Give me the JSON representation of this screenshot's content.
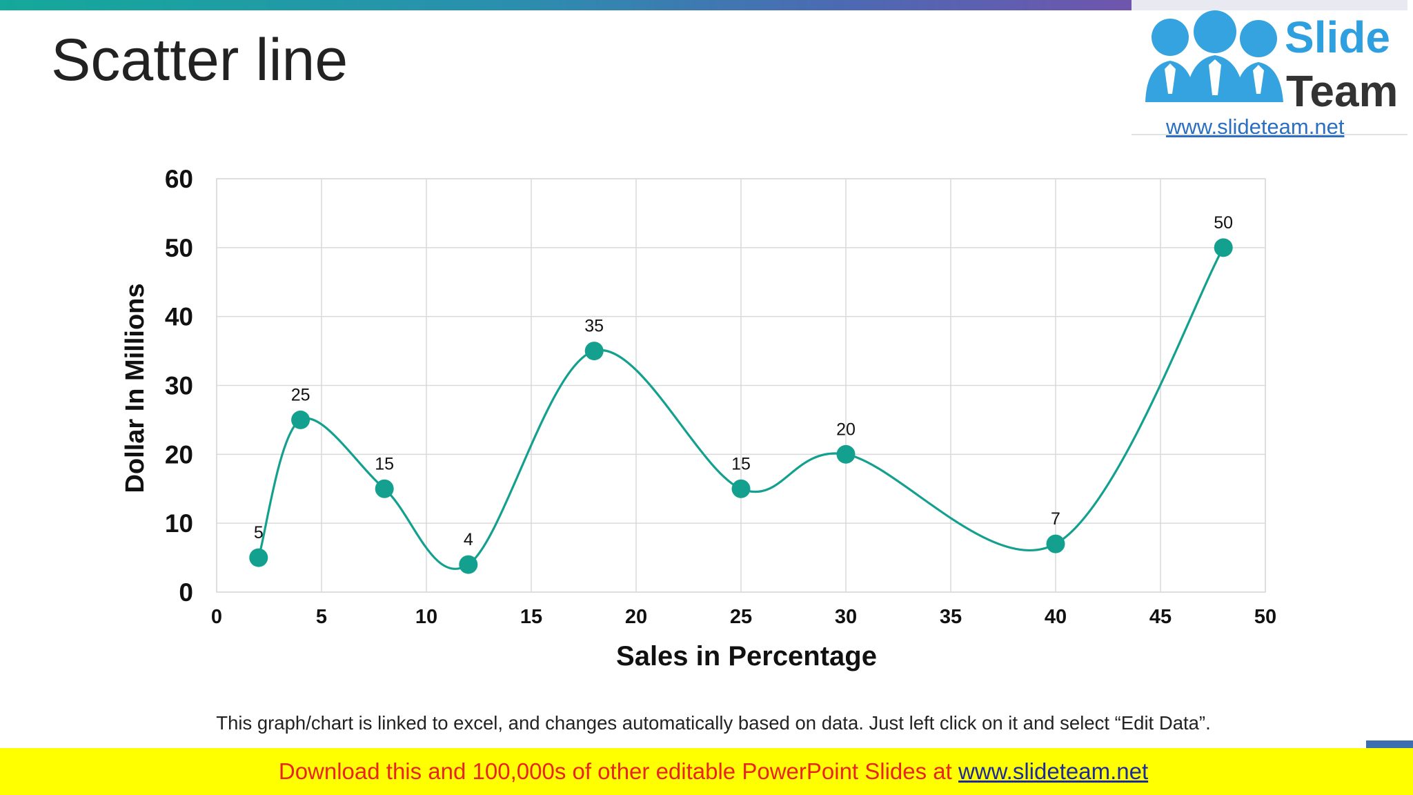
{
  "slide": {
    "title": "Scatter line",
    "note": "This graph/chart is linked to excel, and changes automatically based on data. Just left click on it and select “Edit Data”.",
    "banner_text": "Download this and 100,000s of other editable PowerPoint Slides at ",
    "banner_link": "www.slideteam.net"
  },
  "logo": {
    "word1": "Slide",
    "word2": "Team",
    "url": "www.slideteam.net",
    "icon": "three-people-icon"
  },
  "colors": {
    "series": "#13a08f",
    "grid": "#d9d9d9",
    "axis_text": "#111111",
    "banner_bg": "#ffff00",
    "banner_text": "#e8251f"
  },
  "chart_data": {
    "type": "scatter",
    "title": "",
    "xlabel": "Sales in Percentage",
    "ylabel": "Dollar In Millions",
    "xlim": [
      0,
      50
    ],
    "ylim": [
      0,
      60
    ],
    "x_ticks": [
      "0",
      "5",
      "10",
      "15",
      "20",
      "25",
      "30",
      "35",
      "40",
      "45",
      "50"
    ],
    "y_ticks": [
      "0",
      "10",
      "20",
      "30",
      "40",
      "50",
      "60"
    ],
    "grid": true,
    "line": "smooth",
    "series": [
      {
        "points": [
          {
            "x": 2,
            "y": 5
          },
          {
            "x": 4,
            "y": 25
          },
          {
            "x": 8,
            "y": 15
          },
          {
            "x": 12,
            "y": 4
          },
          {
            "x": 18,
            "y": 35
          },
          {
            "x": 25,
            "y": 15
          },
          {
            "x": 30,
            "y": 20
          },
          {
            "x": 40,
            "y": 7
          },
          {
            "x": 48,
            "y": 50
          }
        ],
        "data_labels": [
          "5",
          "25",
          "15",
          "4",
          "35",
          "15",
          "20",
          "7",
          "50"
        ]
      }
    ]
  }
}
